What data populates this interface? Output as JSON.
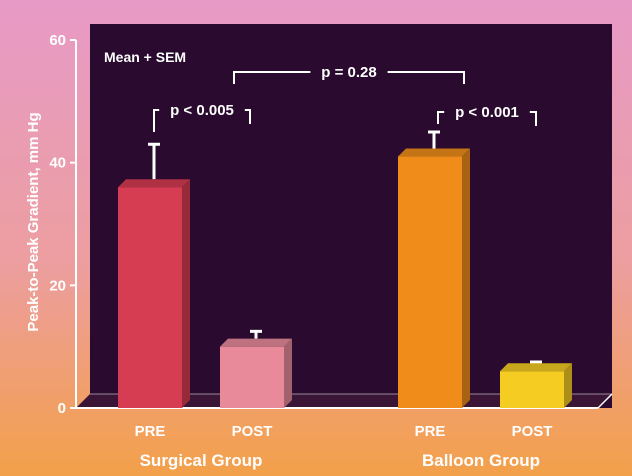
{
  "chart_data": {
    "type": "bar",
    "title": "",
    "annotation": "Mean + SEM",
    "ylabel": "Peak-to-Peak Gradient, mm Hg",
    "ylim": [
      0,
      60
    ],
    "yticks": [
      "0",
      "20",
      "40",
      "60"
    ],
    "groups": [
      {
        "name": "Surgical Group",
        "bars": [
          {
            "label": "PRE",
            "value": 36,
            "sem": 7,
            "color": "#d63c52"
          },
          {
            "label": "POST",
            "value": 10,
            "sem": 2.5,
            "color": "#e88a9a"
          }
        ]
      },
      {
        "name": "Balloon Group",
        "bars": [
          {
            "label": "PRE",
            "value": 41,
            "sem": 4,
            "color": "#ef8c1a"
          },
          {
            "label": "POST",
            "value": 6,
            "sem": 1.5,
            "color": "#f5cc22"
          }
        ]
      }
    ],
    "comparisons": [
      {
        "text": "p < 0.005"
      },
      {
        "text": "p < 0.001"
      },
      {
        "text": "p = 0.28"
      }
    ],
    "colors": {
      "plot_background": "#2a0a2e",
      "axis": "#ffffff",
      "background_top": "#e79ac6",
      "background_bottom": "#f3a04a"
    }
  }
}
